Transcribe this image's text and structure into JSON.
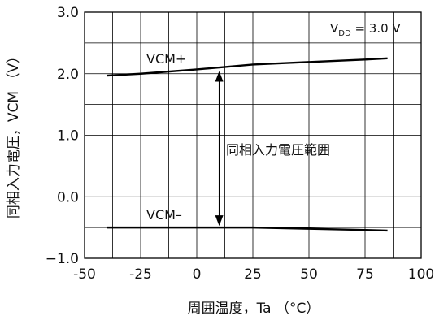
{
  "chart_data": {
    "type": "line",
    "xlabel": "周囲温度，Ta （°C）",
    "ylabel": "同相入力電圧，VCM （V）",
    "x_ticks": [
      -50,
      -25,
      0,
      25,
      50,
      75,
      100
    ],
    "y_ticks": [
      "−1.0",
      "0.0",
      "1.0",
      "2.0",
      "3.0"
    ],
    "y_tick_values": [
      -1.0,
      0.0,
      1.0,
      2.0,
      3.0
    ],
    "xlim": [
      -50,
      100
    ],
    "ylim": [
      -1.0,
      3.0
    ],
    "grid": true,
    "condition": {
      "prefix": "V",
      "sub": "DD",
      "suffix": " = 3.0 V"
    },
    "annotation": "同相入力電圧範囲",
    "series": [
      {
        "name": "VCM+",
        "x": [
          -40,
          -25,
          0,
          25,
          50,
          75,
          85
        ],
        "y": [
          1.97,
          2.0,
          2.07,
          2.15,
          2.19,
          2.23,
          2.25
        ]
      },
      {
        "name": "VCM–",
        "x": [
          -40,
          -25,
          0,
          25,
          50,
          75,
          85
        ],
        "y": [
          -0.5,
          -0.5,
          -0.5,
          -0.5,
          -0.52,
          -0.54,
          -0.55
        ]
      }
    ]
  }
}
